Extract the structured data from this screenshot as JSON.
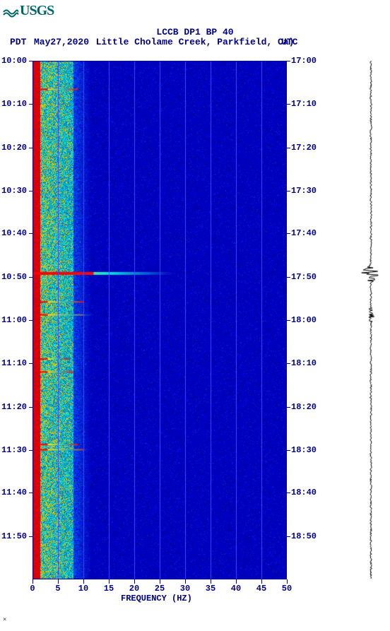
{
  "logo": {
    "text": "USGS",
    "color": "#006666"
  },
  "header": {
    "line1": "LCCB DP1 BP 40",
    "date": "May27,2020",
    "location": "Little Cholame Creek, Parkfield, Ca)",
    "tz_left": "PDT",
    "tz_right": "UTC"
  },
  "xaxis": {
    "label": "FREQUENCY (HZ)",
    "min": 0,
    "max": 50,
    "ticks": [
      0,
      5,
      10,
      15,
      20,
      25,
      30,
      35,
      40,
      45,
      50
    ],
    "gridlines": [
      5,
      10,
      15,
      20,
      25,
      30,
      35,
      40,
      45
    ]
  },
  "yaxis_left": {
    "ticks": [
      "10:00",
      "10:10",
      "10:20",
      "10:30",
      "10:40",
      "10:50",
      "11:00",
      "11:10",
      "11:20",
      "11:30",
      "11:40",
      "11:50"
    ],
    "positions": [
      0.0,
      0.083,
      0.167,
      0.25,
      0.333,
      0.417,
      0.5,
      0.583,
      0.667,
      0.75,
      0.833,
      0.917
    ]
  },
  "yaxis_right": {
    "ticks": [
      "17:00",
      "17:10",
      "17:20",
      "17:30",
      "17:40",
      "17:50",
      "18:00",
      "18:10",
      "18:20",
      "18:30",
      "18:40",
      "18:50"
    ],
    "positions": [
      0.0,
      0.083,
      0.167,
      0.25,
      0.333,
      0.417,
      0.5,
      0.583,
      0.667,
      0.75,
      0.833,
      0.917
    ]
  },
  "spectrogram": {
    "bg_color": "#0000cc",
    "low_energy_color": "#0000aa",
    "mid_color": "#00dddd",
    "high_color": "#ffff00",
    "hot_color": "#ff0000",
    "gridline_color": "#4444ff",
    "border_color": "#000088",
    "low_freq_boundary_hz": 8,
    "red_edge_hz": 1.5,
    "event_bands": [
      {
        "t": 0.055,
        "extent_hz": 9
      },
      {
        "t": 0.41,
        "extent_hz": 28,
        "strong": true
      },
      {
        "t": 0.465,
        "extent_hz": 10
      },
      {
        "t": 0.49,
        "extent_hz": 12
      },
      {
        "t": 0.575,
        "extent_hz": 7
      },
      {
        "t": 0.6,
        "extent_hz": 8
      },
      {
        "t": 0.74,
        "extent_hz": 9
      },
      {
        "t": 0.75,
        "extent_hz": 11
      }
    ]
  },
  "waveform": {
    "color": "#000000",
    "baseline_amp": 0.06,
    "events": [
      {
        "t": 0.41,
        "amp": 1.0
      },
      {
        "t": 0.49,
        "amp": 0.35
      }
    ]
  },
  "tiny_corner": "×"
}
